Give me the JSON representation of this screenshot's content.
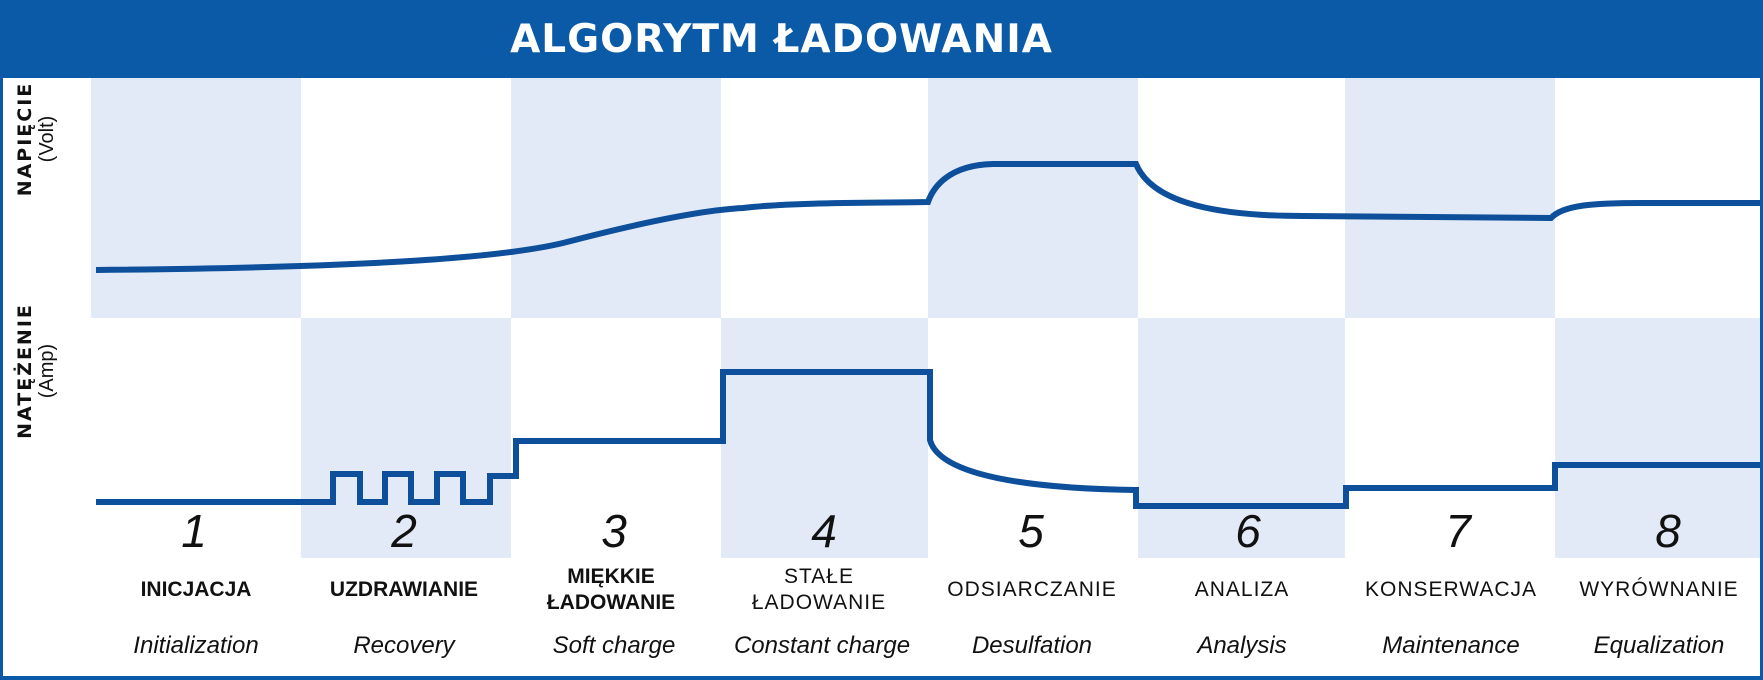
{
  "title": "ALGORYTM ŁADOWANIA",
  "voltage_axis": {
    "label": "NAPIĘCIE",
    "unit": "(Volt)"
  },
  "current_axis": {
    "label": "NATĘŻENIE",
    "unit": "(Amp)"
  },
  "stages": [
    {
      "number": "1",
      "pl": "INICJACJA",
      "en": "Initialization"
    },
    {
      "number": "2",
      "pl": "UZDRAWIANIE",
      "en": "Recovery"
    },
    {
      "number": "3",
      "pl": "MIĘKKIE ŁADOWANIE",
      "en": "Soft charge"
    },
    {
      "number": "4",
      "pl": "STAŁE ŁADOWANIE",
      "en": "Constant charge"
    },
    {
      "number": "5",
      "pl": "ODSIARCZANIE",
      "en": "Desulfation"
    },
    {
      "number": "6",
      "pl": "ANALIZA",
      "en": "Analysis"
    },
    {
      "number": "7",
      "pl": "KONSERWACJA",
      "en": "Maintenance"
    },
    {
      "number": "8",
      "pl": "WYRÓWNANIE",
      "en": "Equalization"
    }
  ],
  "colors": {
    "header": "#0a5aa8",
    "line": "#0d4f9a",
    "shade": "#e3eaf7",
    "text": "#111111"
  }
}
